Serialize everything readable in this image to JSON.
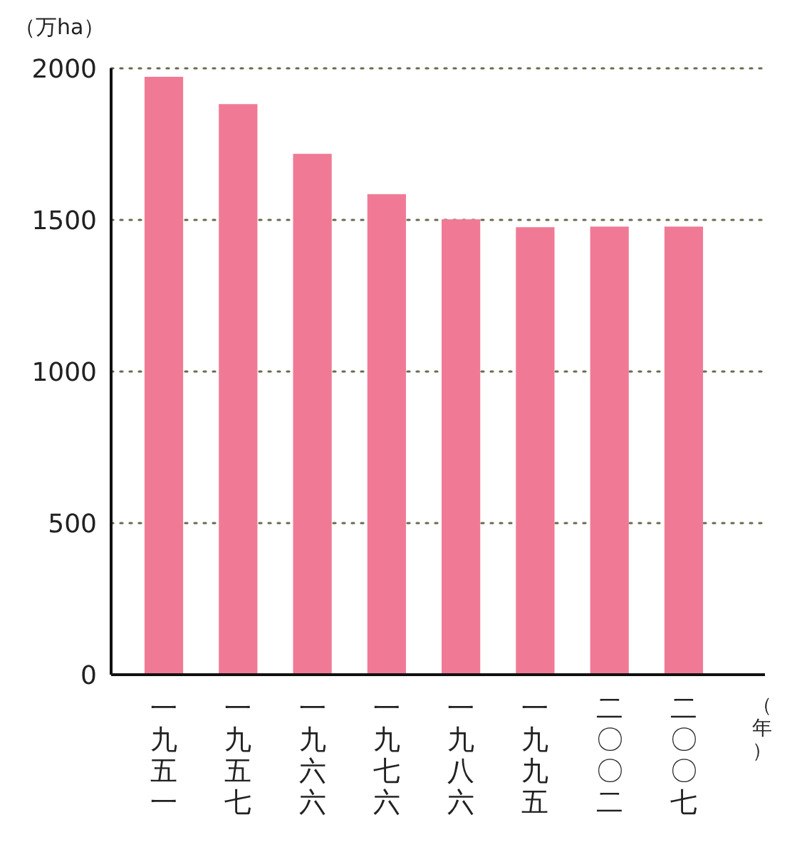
{
  "chart_data": {
    "type": "bar",
    "ylabel": "（万ha）",
    "xlabel": "（年）",
    "categories": [
      "一九五一",
      "一九五七",
      "一九六六",
      "一九七六",
      "一九八六",
      "一九九五",
      "二〇〇二",
      "二〇〇七"
    ],
    "values": [
      1972,
      1882,
      1718,
      1585,
      1502,
      1476,
      1478,
      1478
    ],
    "color": "#f07a95",
    "ylim": [
      0,
      2000
    ],
    "yticks": [
      0,
      500,
      1000,
      1500,
      2000
    ],
    "grid": "y"
  }
}
